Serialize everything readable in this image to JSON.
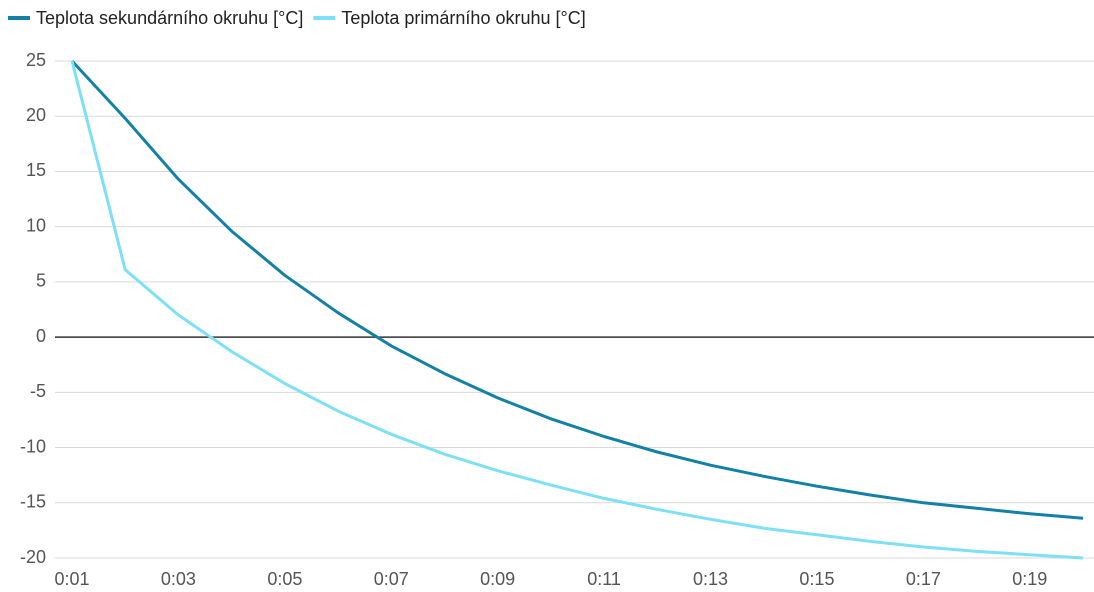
{
  "chart_data": {
    "type": "line",
    "categories": [
      "0:01",
      null,
      "0:03",
      null,
      "0:05",
      null,
      "0:07",
      null,
      "0:09",
      null,
      "0:11",
      null,
      "0:13",
      null,
      "0:15",
      null,
      "0:17",
      null,
      "0:19",
      null
    ],
    "series": [
      {
        "name": "Teplota sekundárního okruhu [°C]",
        "color": "#1380a8",
        "values": [
          25,
          19.8,
          14.3,
          9.6,
          5.6,
          2.2,
          -0.8,
          -3.3,
          -5.5,
          -7.4,
          -9.0,
          -10.4,
          -11.6,
          -12.6,
          -13.5,
          -14.3,
          -15.0,
          -15.5,
          -16.0,
          -16.4
        ]
      },
      {
        "name": "Teplota primárního okruhu [°C]",
        "color": "#7de0f7",
        "values": [
          25,
          6.1,
          2.0,
          -1.3,
          -4.2,
          -6.7,
          -8.8,
          -10.6,
          -12.1,
          -13.4,
          -14.6,
          -15.6,
          -16.5,
          -17.3,
          -17.9,
          -18.5,
          -19.0,
          -19.4,
          -19.7,
          -20.0
        ]
      }
    ],
    "ylim": [
      -20,
      25
    ],
    "yticks": [
      25,
      20,
      15,
      10,
      5,
      0,
      -5,
      -10,
      -15,
      -20
    ],
    "grid": true,
    "legend": "top"
  }
}
